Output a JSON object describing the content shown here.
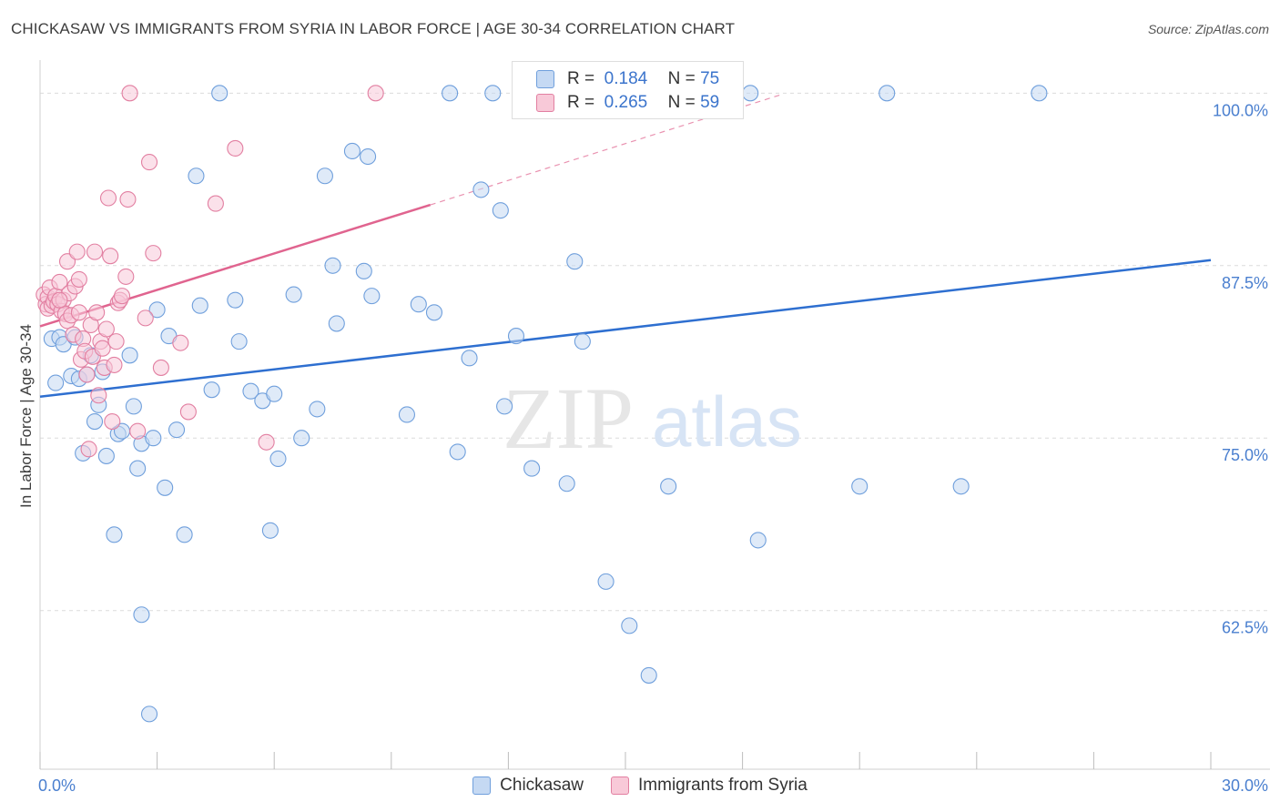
{
  "title": "CHICKASAW VS IMMIGRANTS FROM SYRIA IN LABOR FORCE | AGE 30-34 CORRELATION CHART",
  "source": "Source: ZipAtlas.com",
  "watermark": {
    "zip": "ZIP",
    "atlas": "atlas"
  },
  "legend": {
    "r_label": "R =",
    "n_label": "N =",
    "rows": [
      {
        "r": "0.184",
        "n": "75"
      },
      {
        "r": "0.265",
        "n": "59"
      }
    ]
  },
  "colors": {
    "blue_fill": "#c5d9f3",
    "blue_stroke": "#6f9fdc",
    "blue_line": "#2e6fd0",
    "pink_fill": "#f8c9d8",
    "pink_stroke": "#e27fa1",
    "pink_line": "#e0648f",
    "grid": "#dcdcdc",
    "axis_text": "#4a7fcf"
  },
  "chart_data": {
    "type": "scatter",
    "xlabel": "",
    "ylabel": "In Labor Force | Age 30-34",
    "xlim": [
      0,
      30
    ],
    "ylim": [
      51,
      102
    ],
    "x_tick_labels": [
      "0.0%",
      "30.0%"
    ],
    "y_ticks": [
      62.5,
      75.0,
      87.5,
      100.0
    ],
    "y_tick_labels": [
      "62.5%",
      "75.0%",
      "87.5%",
      "100.0%"
    ],
    "grid": true,
    "legend_position": "bottom",
    "series": [
      {
        "name": "Chickasaw",
        "color": "blue",
        "trend": {
          "x0": 0,
          "y0": 78.0,
          "x1": 30,
          "y1": 87.9
        },
        "points": [
          [
            0.3,
            82.2
          ],
          [
            0.5,
            82.3
          ],
          [
            0.6,
            81.8
          ],
          [
            0.8,
            79.5
          ],
          [
            0.9,
            82.3
          ],
          [
            1.0,
            79.3
          ],
          [
            1.1,
            73.9
          ],
          [
            1.2,
            79.6
          ],
          [
            1.3,
            81.0
          ],
          [
            1.4,
            76.2
          ],
          [
            1.5,
            77.4
          ],
          [
            1.7,
            73.7
          ],
          [
            1.9,
            68.0
          ],
          [
            2.0,
            75.3
          ],
          [
            2.3,
            81.0
          ],
          [
            2.4,
            77.3
          ],
          [
            2.5,
            72.8
          ],
          [
            2.6,
            74.6
          ],
          [
            2.6,
            62.2
          ],
          [
            2.8,
            55.0
          ],
          [
            2.9,
            75.0
          ],
          [
            3.0,
            84.3
          ],
          [
            3.2,
            71.4
          ],
          [
            3.3,
            82.4
          ],
          [
            3.5,
            75.6
          ],
          [
            3.7,
            68.0
          ],
          [
            4.0,
            94.0
          ],
          [
            4.1,
            84.6
          ],
          [
            4.4,
            78.5
          ],
          [
            4.6,
            100.0
          ],
          [
            5.0,
            85.0
          ],
          [
            5.1,
            82.0
          ],
          [
            5.4,
            78.4
          ],
          [
            5.7,
            77.7
          ],
          [
            5.9,
            68.3
          ],
          [
            6.1,
            73.5
          ],
          [
            6.5,
            85.4
          ],
          [
            6.7,
            75.0
          ],
          [
            7.1,
            77.1
          ],
          [
            7.3,
            94.0
          ],
          [
            7.5,
            87.5
          ],
          [
            7.6,
            83.3
          ],
          [
            8.0,
            95.8
          ],
          [
            8.3,
            87.1
          ],
          [
            8.4,
            95.4
          ],
          [
            8.5,
            85.3
          ],
          [
            9.4,
            76.7
          ],
          [
            9.7,
            84.7
          ],
          [
            10.1,
            84.1
          ],
          [
            10.5,
            100.0
          ],
          [
            10.7,
            74.0
          ],
          [
            11.0,
            80.8
          ],
          [
            11.3,
            93.0
          ],
          [
            11.6,
            100.0
          ],
          [
            11.8,
            91.5
          ],
          [
            11.9,
            77.3
          ],
          [
            12.2,
            82.4
          ],
          [
            12.6,
            72.8
          ],
          [
            13.5,
            71.7
          ],
          [
            13.7,
            87.8
          ],
          [
            13.9,
            82.0
          ],
          [
            14.5,
            64.6
          ],
          [
            15.1,
            61.4
          ],
          [
            15.6,
            57.8
          ],
          [
            16.1,
            71.5
          ],
          [
            18.2,
            100.0
          ],
          [
            18.4,
            67.6
          ],
          [
            21.0,
            71.5
          ],
          [
            21.7,
            100.0
          ],
          [
            23.6,
            71.5
          ],
          [
            25.6,
            100.0
          ],
          [
            0.4,
            79.0
          ],
          [
            2.1,
            75.5
          ],
          [
            6.0,
            78.2
          ],
          [
            1.6,
            79.8
          ]
        ]
      },
      {
        "name": "Immigrants from Syria",
        "color": "pink",
        "trend": {
          "x0": 0,
          "y0": 83.1,
          "x1": 10,
          "y1": 91.9,
          "dash_to": {
            "x": 19,
            "y": 99.9
          }
        },
        "points": [
          [
            0.1,
            85.4
          ],
          [
            0.15,
            84.7
          ],
          [
            0.2,
            85.2
          ],
          [
            0.2,
            84.4
          ],
          [
            0.25,
            85.9
          ],
          [
            0.3,
            84.6
          ],
          [
            0.35,
            84.9
          ],
          [
            0.4,
            85.3
          ],
          [
            0.45,
            84.7
          ],
          [
            0.5,
            86.3
          ],
          [
            0.55,
            84.2
          ],
          [
            0.6,
            85.0
          ],
          [
            0.65,
            84.0
          ],
          [
            0.7,
            83.5
          ],
          [
            0.7,
            87.8
          ],
          [
            0.75,
            85.5
          ],
          [
            0.8,
            83.9
          ],
          [
            0.85,
            82.5
          ],
          [
            0.9,
            86.0
          ],
          [
            0.95,
            88.5
          ],
          [
            1.0,
            84.1
          ],
          [
            1.05,
            80.7
          ],
          [
            1.1,
            82.2
          ],
          [
            1.15,
            81.3
          ],
          [
            1.2,
            79.6
          ],
          [
            1.25,
            74.2
          ],
          [
            1.3,
            83.2
          ],
          [
            1.35,
            80.9
          ],
          [
            1.4,
            88.5
          ],
          [
            1.45,
            84.1
          ],
          [
            1.5,
            78.1
          ],
          [
            1.55,
            82.0
          ],
          [
            1.6,
            81.5
          ],
          [
            1.65,
            80.1
          ],
          [
            1.7,
            82.9
          ],
          [
            1.75,
            92.4
          ],
          [
            1.8,
            88.2
          ],
          [
            1.85,
            76.2
          ],
          [
            1.9,
            80.3
          ],
          [
            1.95,
            82.0
          ],
          [
            2.0,
            84.8
          ],
          [
            2.05,
            85.0
          ],
          [
            2.1,
            85.3
          ],
          [
            2.2,
            86.7
          ],
          [
            2.25,
            92.3
          ],
          [
            2.3,
            100.0
          ],
          [
            2.5,
            75.5
          ],
          [
            2.7,
            83.7
          ],
          [
            2.8,
            95.0
          ],
          [
            3.1,
            80.1
          ],
          [
            3.6,
            81.9
          ],
          [
            3.8,
            76.9
          ],
          [
            4.5,
            92.0
          ],
          [
            5.0,
            96.0
          ],
          [
            5.8,
            74.7
          ],
          [
            8.6,
            100.0
          ],
          [
            2.9,
            88.4
          ],
          [
            1.0,
            86.5
          ],
          [
            0.5,
            85.0
          ]
        ]
      }
    ]
  }
}
